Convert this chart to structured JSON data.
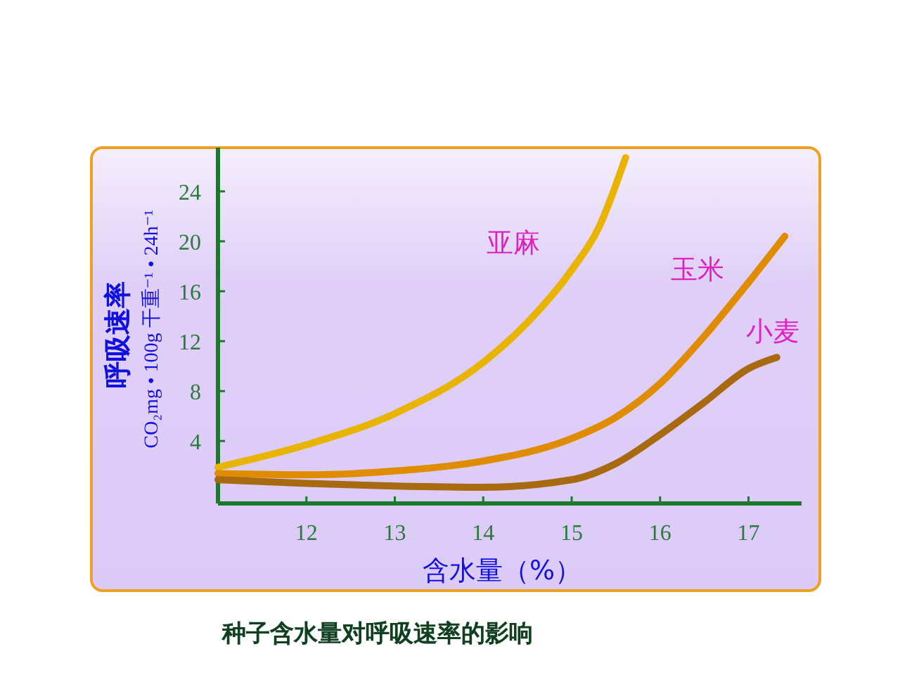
{
  "chart_data": {
    "type": "line",
    "title": "种子含水量对呼吸速率的影响",
    "xlabel": "含水量（%）",
    "ylabel": "呼吸速率\nCO₂mg • 100g 干重⁻¹ • 24h⁻¹",
    "xlim": [
      11,
      17.6
    ],
    "xticks": [
      12,
      13,
      14,
      15,
      16,
      17
    ],
    "ylim": [
      -1,
      27.5
    ],
    "yticks": [
      4,
      8,
      12,
      16,
      20,
      24
    ],
    "grid": false,
    "marker": "none",
    "line_style": "solid",
    "series": [
      {
        "name": "亚麻",
        "color": "#e8b400",
        "x": [
          11,
          12,
          13,
          14,
          14.5,
          15,
          15.3,
          15.61
        ],
        "values": [
          1.9,
          3.7,
          6.2,
          10.3,
          13.5,
          17.7,
          21,
          26.7
        ]
      },
      {
        "name": "玉米",
        "color": "#e08c00",
        "x": [
          11,
          12,
          13,
          14,
          15,
          15.5,
          16,
          16.5,
          17,
          17.41
        ],
        "values": [
          1.4,
          1.3,
          1.6,
          2.4,
          4.2,
          5.9,
          8.6,
          12.4,
          16.7,
          20.4
        ]
      },
      {
        "name": "小麦",
        "color": "#a86a10",
        "x": [
          11,
          12,
          13,
          14,
          15,
          15.5,
          16,
          16.5,
          17,
          17.32
        ],
        "values": [
          0.9,
          0.6,
          0.4,
          0.3,
          0.9,
          2.2,
          4.5,
          7.1,
          9.8,
          10.7
        ]
      }
    ]
  }
}
